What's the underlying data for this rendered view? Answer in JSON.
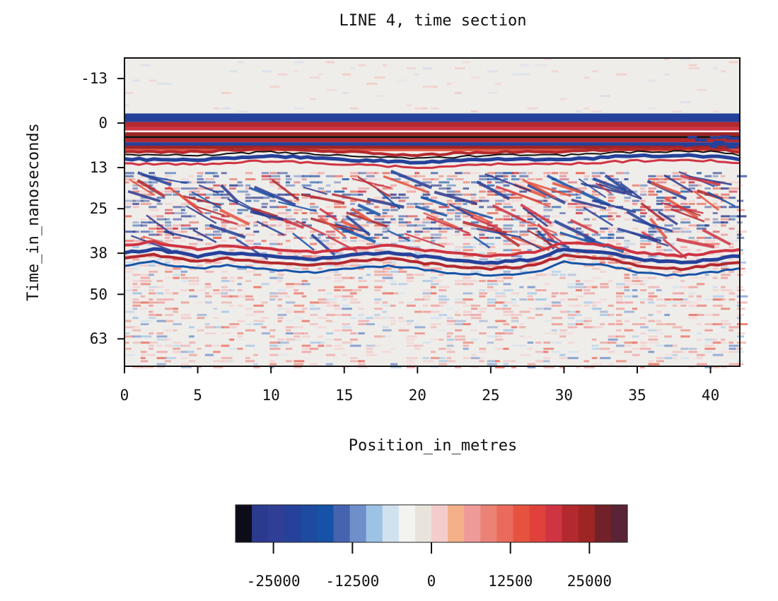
{
  "chart_data": {
    "type": "heatmap",
    "title": "LINE 4, time section",
    "xlabel": "Position_in_metres",
    "ylabel": "Time_in_nanoseconds",
    "xlim": [
      0,
      42
    ],
    "ylim": [
      -19,
      71
    ],
    "y_inverted": true,
    "x_ticks": [
      0,
      5,
      10,
      15,
      20,
      25,
      30,
      35,
      40
    ],
    "y_ticks": [
      -13,
      0,
      13,
      25,
      38,
      50,
      63
    ],
    "grid": false,
    "reflectors": [
      {
        "name": "surface_band",
        "x": [
          0,
          42
        ],
        "t": [
          0,
          0
        ]
      },
      {
        "name": "upper_reflector",
        "x": [
          0,
          5,
          10,
          15,
          20,
          25,
          30,
          35,
          40,
          42
        ],
        "t": [
          9,
          9,
          8,
          9,
          10,
          9,
          9,
          8,
          8,
          9
        ]
      },
      {
        "name": "lower_reflector",
        "x": [
          0,
          2,
          5,
          7,
          10,
          13,
          15,
          18,
          20,
          22,
          25,
          28,
          30,
          33,
          35,
          38,
          40,
          42
        ],
        "t": [
          39,
          38,
          40,
          39,
          40,
          41,
          40,
          39,
          40,
          41,
          42,
          41,
          38,
          39,
          41,
          42,
          41,
          40
        ]
      }
    ],
    "colorbar": {
      "range": [
        -31000,
        31000
      ],
      "ticks": [
        -25000,
        -12500,
        0,
        12500,
        25000
      ],
      "tick_labels": [
        "-25000",
        "-12500",
        "0",
        "12500",
        "25000"
      ],
      "colors": [
        "#0d0d1a",
        "#2c3a8e",
        "#2e3f95",
        "#25419a",
        "#1e4aa0",
        "#1653a8",
        "#4563ae",
        "#6f8fca",
        "#9cc3e6",
        "#d0e2ee",
        "#f3f3f0",
        "#e8e4dc",
        "#f4cccc",
        "#f3b089",
        "#ef9a9a",
        "#ec8276",
        "#ea6a5c",
        "#e5533f",
        "#e0413b",
        "#cf3443",
        "#b3292e",
        "#9d2524",
        "#722128",
        "#5a2436"
      ]
    }
  }
}
